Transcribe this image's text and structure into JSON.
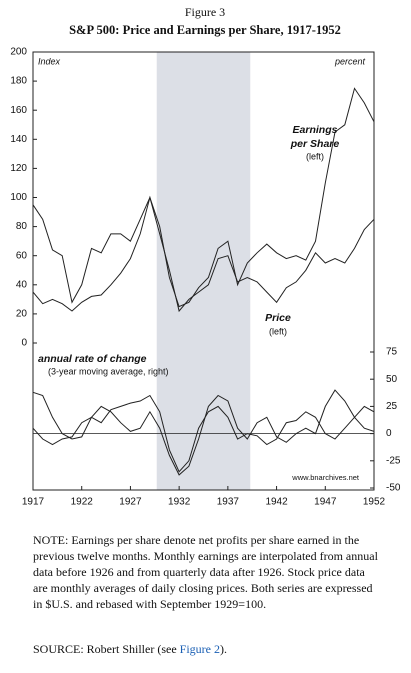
{
  "chart_data": [
    {
      "type": "line",
      "title": "Figure 3",
      "subtitle": "S&P 500: Price and Earnings per Share, 1917-1952",
      "xlim": [
        1917,
        1952
      ],
      "ylim": [
        0,
        200
      ],
      "yticks": [
        0,
        20,
        40,
        60,
        80,
        100,
        120,
        140,
        160,
        180,
        200
      ],
      "highlight": [
        1929.7,
        1939.3
      ],
      "highlight_color": "#dcdfe6",
      "annotations": [
        "Index",
        "percent",
        "Earnings",
        "per Share",
        "(left)",
        "Price",
        "(left)"
      ],
      "x": [
        1917,
        1918,
        1919,
        1920,
        1921,
        1922,
        1923,
        1924,
        1925,
        1926,
        1927,
        1928,
        1929,
        1930,
        1931,
        1932,
        1933,
        1934,
        1935,
        1936,
        1937,
        1938,
        1939,
        1940,
        1941,
        1942,
        1943,
        1944,
        1945,
        1946,
        1947,
        1948,
        1949,
        1950,
        1951,
        1952
      ],
      "series": [
        {
          "color": "#222",
          "values": [
            35,
            27,
            30,
            27,
            22,
            28,
            32,
            33,
            40,
            48,
            58,
            75,
            100,
            75,
            50,
            22,
            30,
            35,
            40,
            58,
            60,
            42,
            45,
            42,
            35,
            28,
            38,
            42,
            50,
            62,
            55,
            58,
            55,
            65,
            78,
            85
          ]
        },
        {
          "color": "#222",
          "values": [
            95,
            85,
            64,
            60,
            28,
            40,
            65,
            62,
            75,
            75,
            70,
            85,
            100,
            80,
            45,
            25,
            28,
            38,
            45,
            65,
            70,
            40,
            55,
            62,
            68,
            62,
            58,
            60,
            57,
            70,
            110,
            145,
            150,
            175,
            165,
            152
          ]
        }
      ]
    },
    {
      "type": "line",
      "xlim": [
        1917,
        1952
      ],
      "xticks": [
        1917,
        1922,
        1927,
        1932,
        1937,
        1942,
        1947,
        1952
      ],
      "y2lim": [
        -50,
        75
      ],
      "y2ticks": [
        -50,
        -25,
        0,
        25,
        50,
        75
      ],
      "annotations": [
        "annual rate of change",
        "(3-year moving average, right)",
        "www.bnarchives.net"
      ],
      "x": [
        1917,
        1918,
        1919,
        1920,
        1921,
        1922,
        1923,
        1924,
        1925,
        1926,
        1927,
        1928,
        1929,
        1930,
        1931,
        1932,
        1933,
        1934,
        1935,
        1936,
        1937,
        1938,
        1939,
        1940,
        1941,
        1942,
        1943,
        1944,
        1945,
        1946,
        1947,
        1948,
        1949,
        1950,
        1951,
        1952
      ],
      "series": [
        {
          "color": "#222",
          "axis": "y2",
          "values": [
            38,
            35,
            15,
            0,
            -5,
            -3,
            15,
            25,
            20,
            10,
            2,
            5,
            20,
            5,
            -20,
            -38,
            -30,
            -5,
            25,
            35,
            30,
            5,
            -5,
            10,
            15,
            -3,
            -8,
            0,
            5,
            0,
            25,
            40,
            30,
            15,
            5,
            2
          ]
        },
        {
          "color": "#222",
          "axis": "y2",
          "values": [
            5,
            -5,
            -10,
            -5,
            -3,
            10,
            15,
            10,
            22,
            25,
            28,
            30,
            35,
            20,
            -15,
            -35,
            -25,
            5,
            20,
            25,
            15,
            -5,
            0,
            -2,
            -10,
            -5,
            10,
            12,
            20,
            15,
            0,
            -5,
            5,
            15,
            25,
            20
          ]
        }
      ]
    }
  ],
  "note": "NOTE: Earnings per share denote net profits per share earned in the previous twelve months. Monthly earnings are interpolated from annual data before 1926 and from quarterly data after 1926. Stock price data are monthly averages of daily closing prices. Both series are expressed in $U.S. and rebased with September 1929=100.",
  "source": {
    "text": "SOURCE: Robert Shiller (see ",
    "link": "Figure 2",
    "end": ")."
  }
}
